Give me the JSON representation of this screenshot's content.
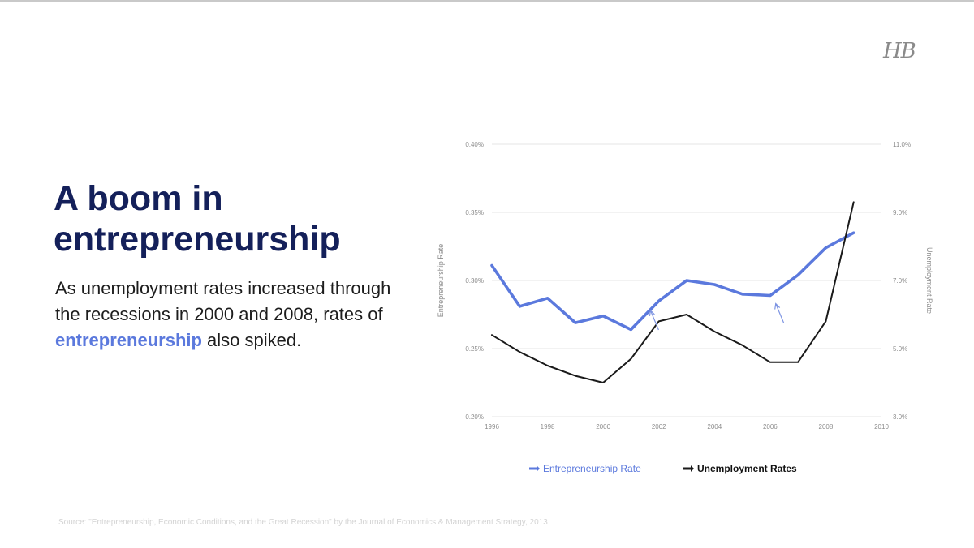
{
  "logo_text": "HB",
  "headline": "A boom in entrepreneurship",
  "body": {
    "part1": "As unemployment rates increased through the recessions in 2000 and 2008, rates of ",
    "highlight": "entrepreneurship",
    "part2": " also spiked."
  },
  "source_note": "Source: \"Entrepreneurship, Economic Conditions, and the Great Recession\" by the Journal of Economics & Management Strategy, 2013",
  "colors": {
    "entrepreneurship": "#5b79dd",
    "unemployment": "#1a1a1a",
    "headline": "#14205a",
    "grid": "#e6e6e6"
  },
  "chart_data": {
    "type": "line",
    "title": "",
    "xlabel": "",
    "ylabel": "Entrepreneurship Rate",
    "y2label": "Unemployment Rate",
    "xlim": [
      1996,
      2010
    ],
    "ylim": [
      0.2,
      0.4
    ],
    "y2lim": [
      3.0,
      11.0
    ],
    "x_ticks": [
      "1996",
      "1998",
      "2000",
      "2002",
      "2004",
      "2006",
      "2008",
      "2010"
    ],
    "y_ticks": [
      "0.20%",
      "0.25%",
      "0.30%",
      "0.35%",
      "0.40%"
    ],
    "y2_ticks": [
      "3.0%",
      "5.0%",
      "7.0%",
      "9.0%",
      "11.0%"
    ],
    "grid": true,
    "legend_position": "bottom",
    "series": [
      {
        "name": "Entrepreneurship Rate",
        "axis": "left",
        "x": [
          1996,
          1997,
          1998,
          1999,
          2000,
          2001,
          2002,
          2003,
          2004,
          2005,
          2006,
          2007,
          2008,
          2009
        ],
        "values": [
          0.311,
          0.281,
          0.287,
          0.269,
          0.274,
          0.264,
          0.285,
          0.3,
          0.297,
          0.29,
          0.289,
          0.304,
          0.324,
          0.335
        ]
      },
      {
        "name": "Unemployment Rates",
        "axis": "right",
        "x": [
          1996,
          1997,
          1998,
          1999,
          2000,
          2001,
          2002,
          2003,
          2004,
          2005,
          2006,
          2007,
          2008,
          2009
        ],
        "values": [
          5.4,
          4.9,
          4.5,
          4.2,
          4.0,
          4.7,
          5.8,
          6.0,
          5.5,
          5.1,
          4.6,
          4.6,
          5.8,
          9.3
        ]
      }
    ],
    "annotations": [
      {
        "type": "arrow",
        "x": 2001.7,
        "axis": "left",
        "value": 0.278
      },
      {
        "type": "arrow",
        "x": 2006.2,
        "axis": "left",
        "value": 0.283
      }
    ]
  }
}
